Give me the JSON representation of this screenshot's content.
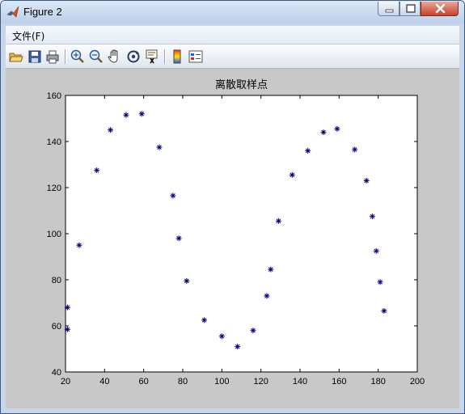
{
  "window": {
    "title": "Figure 2"
  },
  "icons": {
    "app": "matlab-logo-icon",
    "minimize": "minimize-icon",
    "maximize": "maximize-icon",
    "close": "close-icon"
  },
  "menu": {
    "items": [
      {
        "label": "文件(F)"
      }
    ]
  },
  "toolbar": {
    "buttons": [
      {
        "icon": "open-file-icon"
      },
      {
        "icon": "save-icon"
      },
      {
        "icon": "print-icon"
      },
      {
        "icon": "zoom-in-icon"
      },
      {
        "icon": "zoom-out-icon"
      },
      {
        "icon": "pan-icon"
      },
      {
        "icon": "rotate-3d-icon"
      },
      {
        "icon": "data-cursor-icon"
      },
      {
        "icon": "colorbar-icon"
      },
      {
        "icon": "legend-icon"
      }
    ]
  },
  "colors": {
    "marker": "#00007f",
    "figure_bg": "#c8c8c8",
    "axes_bg": "#ffffff"
  },
  "chart_data": {
    "type": "scatter",
    "title": "离散取样点",
    "xlabel": "",
    "ylabel": "",
    "xlim": [
      20,
      200
    ],
    "ylim": [
      40,
      160
    ],
    "xticks": [
      20,
      40,
      60,
      80,
      100,
      120,
      140,
      160,
      180,
      200
    ],
    "yticks": [
      40,
      60,
      80,
      100,
      120,
      140,
      160
    ],
    "grid": false,
    "marker": "*",
    "series": [
      {
        "x": [
          21,
          21,
          27,
          36,
          43,
          51,
          59,
          68,
          75,
          78,
          82,
          91,
          100,
          108,
          116,
          123,
          125,
          129,
          136,
          144,
          152,
          159,
          168,
          174,
          177,
          179,
          181,
          183
        ],
        "y": [
          68,
          58.5,
          95,
          127.5,
          145,
          151.5,
          152,
          137.5,
          116.5,
          98,
          79.5,
          62.5,
          55.5,
          51,
          58,
          73,
          84.5,
          105.5,
          125.5,
          136,
          144,
          145.5,
          136.5,
          123,
          107.5,
          92.5,
          79,
          66.5
        ]
      }
    ]
  }
}
